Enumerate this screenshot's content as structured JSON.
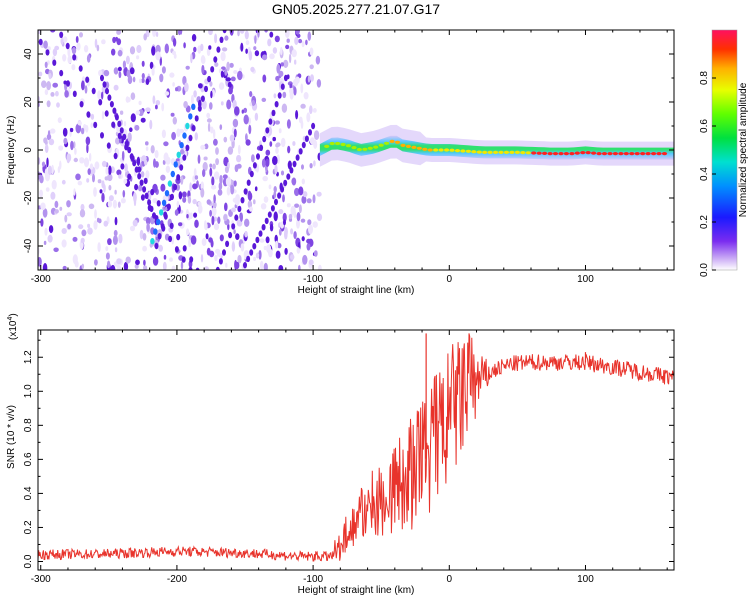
{
  "title": "GN05.2025.277.21.07.G17",
  "colors": {
    "signal": "#e8332b",
    "axis": "#000000",
    "noise_dark": "#5a18d8",
    "noise_light": "#cdb8f2"
  },
  "chart_data": [
    {
      "type": "heatmap",
      "name": "spectrogram",
      "xlabel": "Height of straight line (km)",
      "ylabel": "Frequency (Hz)",
      "xlim": [
        -302,
        165
      ],
      "ylim": [
        -50,
        50
      ],
      "x_ticks": [
        -300,
        -200,
        -100,
        0,
        100
      ],
      "x_tick_labels": [
        "-300",
        "-200",
        "-100",
        "0",
        "100"
      ],
      "y_ticks": [
        -40,
        -20,
        0,
        20,
        40
      ],
      "y_tick_labels": [
        "-40",
        "-20",
        "0",
        "20",
        "40"
      ],
      "noise_region_x": [
        -302,
        -95
      ],
      "signal_track": {
        "x": [
          -95,
          -85,
          -75,
          -65,
          -55,
          -45,
          -40,
          -35,
          -25,
          -15,
          0,
          25,
          50,
          75,
          90,
          100,
          110,
          130,
          165
        ],
        "y": [
          0,
          3,
          2,
          0,
          1,
          3,
          4,
          2,
          1,
          0,
          0,
          -1,
          -1,
          -1.5,
          -1.5,
          -1,
          -1.5,
          -1.5,
          -1.5
        ]
      },
      "colorbar": {
        "label": "Normalized spectral amplitude",
        "range": [
          0,
          1
        ],
        "ticks": [
          0.0,
          0.2,
          0.4,
          0.6,
          0.8
        ],
        "tick_labels": [
          "0.0",
          "0.2",
          "0.4",
          "0.6",
          "0.8"
        ]
      }
    },
    {
      "type": "line",
      "name": "snr",
      "xlabel": "Height of straight line (km)",
      "ylabel": "SNR (10 * v/v)",
      "multiplier_label": "(x10",
      "multiplier_exp": "4",
      "xlim": [
        -302,
        165
      ],
      "ylim": [
        -0.05,
        1.36
      ],
      "x_ticks": [
        -300,
        -200,
        -100,
        0,
        100
      ],
      "x_tick_labels": [
        "-300",
        "-200",
        "-100",
        "0",
        "100"
      ],
      "y_ticks": [
        0.0,
        0.2,
        0.4,
        0.6,
        0.8,
        1.0,
        1.2
      ],
      "y_tick_labels": [
        "0.0",
        "0.2",
        "0.4",
        "0.6",
        "0.8",
        "1.0",
        "1.2"
      ],
      "series": [
        {
          "name": "SNR",
          "x": [
            -302,
            -250,
            -200,
            -150,
            -110,
            -85,
            -75,
            -65,
            -55,
            -45,
            -35,
            -25,
            -15,
            -5,
            5,
            15,
            25,
            35,
            45,
            60,
            80,
            100,
            115,
            130,
            150,
            165
          ],
          "y": [
            0.04,
            0.045,
            0.06,
            0.05,
            0.03,
            0.03,
            0.16,
            0.26,
            0.32,
            0.38,
            0.42,
            0.5,
            0.63,
            0.74,
            0.88,
            1.0,
            1.08,
            1.13,
            1.16,
            1.17,
            1.17,
            1.17,
            1.15,
            1.13,
            1.1,
            1.08
          ],
          "spikes": [
            {
              "x": -17,
              "y": 1.34
            },
            {
              "x": 100,
              "y": 1.23
            }
          ]
        }
      ]
    }
  ]
}
